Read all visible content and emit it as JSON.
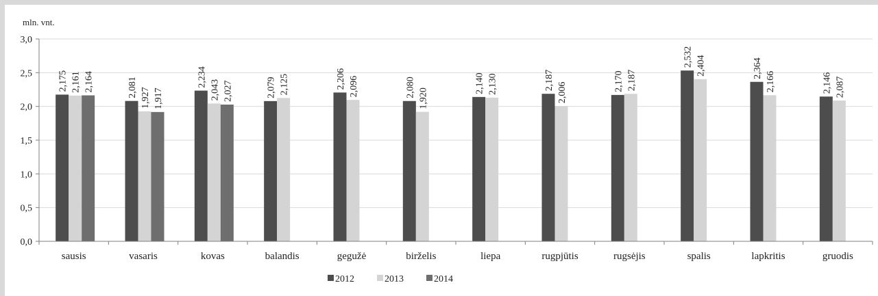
{
  "chart_data": {
    "type": "bar",
    "unit_label": "mln. vnt.",
    "categories": [
      "sausis",
      "vasaris",
      "kovas",
      "balandis",
      "gegužė",
      "birželis",
      "liepa",
      "rugpjūtis",
      "rugsėjis",
      "spalis",
      "lapkritis",
      "gruodis"
    ],
    "series": [
      {
        "name": "2012",
        "color": "#4d4d4d",
        "values": [
          2.175,
          2.081,
          2.234,
          2.079,
          2.206,
          2.08,
          2.14,
          2.187,
          2.17,
          2.532,
          2.364,
          2.146
        ],
        "labels": [
          "2,175",
          "2,081",
          "2,234",
          "2,079",
          "2,206",
          "2,080",
          "2,140",
          "2,187",
          "2,170",
          "2,532",
          "2,364",
          "2,146"
        ]
      },
      {
        "name": "2013",
        "color": "#d4d4d4",
        "values": [
          2.161,
          1.927,
          2.043,
          2.125,
          2.096,
          1.92,
          2.13,
          2.006,
          2.187,
          2.404,
          2.166,
          2.087
        ],
        "labels": [
          "2,161",
          "1,927",
          "2,043",
          "2,125",
          "2,096",
          "1,920",
          "2,130",
          "2,006",
          "2,187",
          "2,404",
          "2,166",
          "2,087"
        ]
      },
      {
        "name": "2014",
        "color": "#6e6e6e",
        "values": [
          2.164,
          1.917,
          2.027,
          null,
          null,
          null,
          null,
          null,
          null,
          null,
          null,
          null
        ],
        "labels": [
          "2,164",
          "1,917",
          "2,027",
          null,
          null,
          null,
          null,
          null,
          null,
          null,
          null,
          null
        ]
      }
    ],
    "yticks": [
      "0,0",
      "0,5",
      "1,0",
      "1,5",
      "2,0",
      "2,5",
      "3,0"
    ],
    "ylim": [
      0,
      3
    ],
    "grid": true,
    "legend_position": "bottom"
  }
}
